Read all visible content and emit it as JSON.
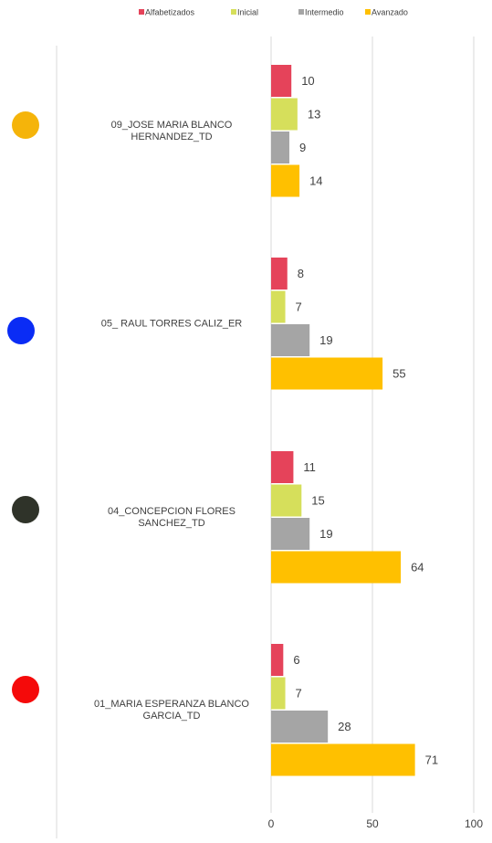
{
  "chart_data": {
    "type": "bar",
    "orientation": "horizontal",
    "categories": [
      "09_JOSE MARIA BLANCO HERNANDEZ_TD",
      "05_ RAUL TORRES CALIZ_ER",
      "04_CONCEPCION FLORES SANCHEZ_TD",
      "01_MARIA ESPERANZA BLANCO GARCIA_TD"
    ],
    "series": [
      {
        "name": "Alfabetizados",
        "color": "#e5435a",
        "values": [
          10,
          8,
          11,
          6
        ]
      },
      {
        "name": "Inicial",
        "color": "#d6df5b",
        "values": [
          13,
          7,
          15,
          7
        ]
      },
      {
        "name": "Intermedio",
        "color": "#a5a5a5",
        "values": [
          9,
          19,
          19,
          28
        ]
      },
      {
        "name": "Avanzado",
        "color": "#ffc000",
        "values": [
          14,
          55,
          64,
          71
        ]
      }
    ],
    "xlim": [
      0,
      100
    ],
    "xticks": [
      0,
      50,
      100
    ],
    "grid": true,
    "legend": "top"
  }
}
